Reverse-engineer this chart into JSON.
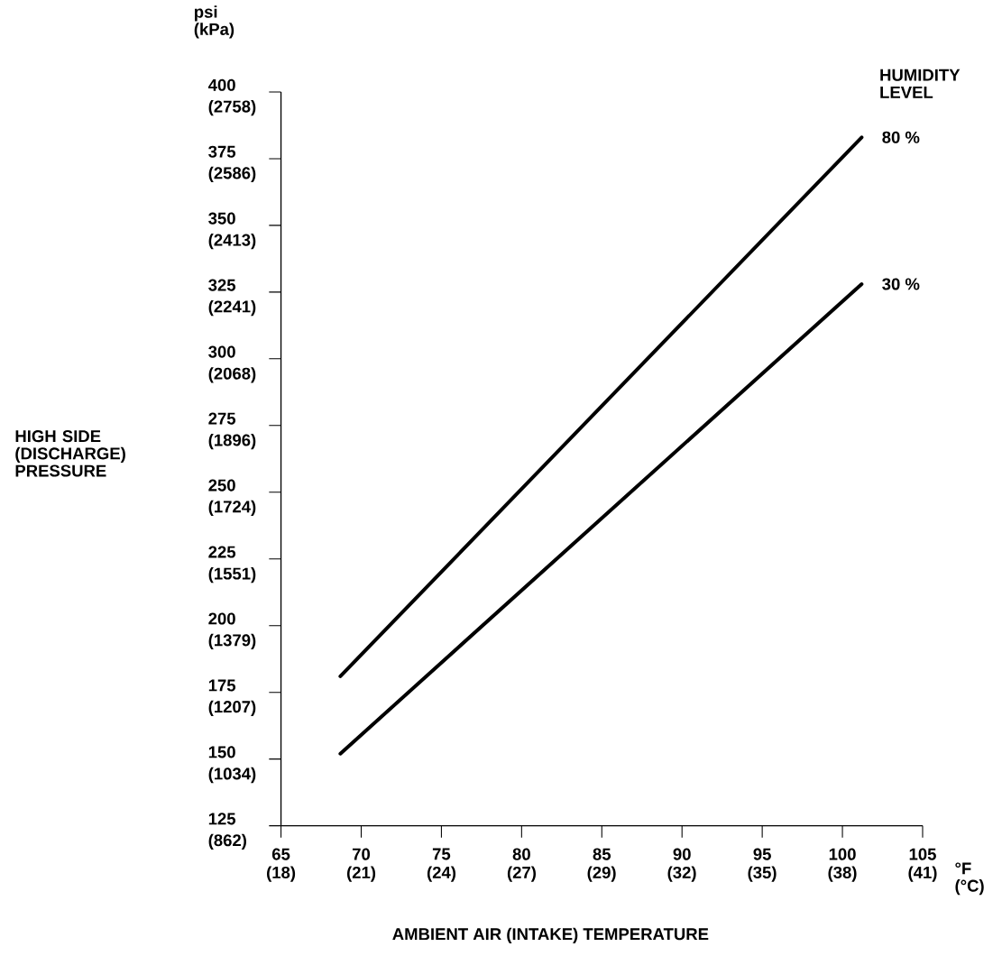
{
  "chart_data": {
    "type": "line",
    "xlabel": "AMBIENT AIR (INTAKE) TEMPERATURE",
    "ylabel": "HIGH SIDE (DISCHARGE) PRESSURE",
    "legend_title": "HUMIDITY LEVEL",
    "annotations": [
      "psi (kPa)",
      "°F (°C)"
    ],
    "xlim": [
      65,
      105
    ],
    "ylim": [
      125,
      400
    ],
    "xticks": [
      65,
      70,
      75,
      80,
      85,
      90,
      95,
      100,
      105
    ],
    "yticks": [
      125,
      150,
      175,
      200,
      225,
      250,
      275,
      300,
      325,
      350,
      375,
      400
    ],
    "x2lim": [
      18.33,
      40.56
    ],
    "x2ticks": [
      {
        "value": 18.33,
        "label": "(18)"
      },
      {
        "value": 21.11,
        "label": "(21)"
      },
      {
        "value": 23.89,
        "label": "(24)"
      },
      {
        "value": 26.67,
        "label": "(27)"
      },
      {
        "value": 29.44,
        "label": "(29)"
      },
      {
        "value": 32.22,
        "label": "(32)"
      },
      {
        "value": 35,
        "label": "(35)"
      },
      {
        "value": 37.78,
        "label": "(38)"
      },
      {
        "value": 40.56,
        "label": "(41)"
      }
    ],
    "y2lim": [
      862,
      2758
    ],
    "y2ticks": [
      {
        "value": 862,
        "label": "(862)"
      },
      {
        "value": 1034,
        "label": "(1034)"
      },
      {
        "value": 1207,
        "label": "(1207)"
      },
      {
        "value": 1379,
        "label": "(1379)"
      },
      {
        "value": 1551,
        "label": "(1551)"
      },
      {
        "value": 1724,
        "label": "(1724)"
      },
      {
        "value": 1896,
        "label": "(1896)"
      },
      {
        "value": 2068,
        "label": "(2068)"
      },
      {
        "value": 2241,
        "label": "(2241)"
      },
      {
        "value": 2413,
        "label": "(2413)"
      },
      {
        "value": 2586,
        "label": "(2586)"
      },
      {
        "value": 2758,
        "label": "(2758)"
      }
    ],
    "x": [
      68.7,
      101.2
    ],
    "series": [
      {
        "name": "80 %",
        "color": "#000000",
        "values": [
          181,
          383
        ]
      },
      {
        "name": "30 %",
        "color": "#000000",
        "values": [
          152,
          328
        ]
      }
    ]
  }
}
